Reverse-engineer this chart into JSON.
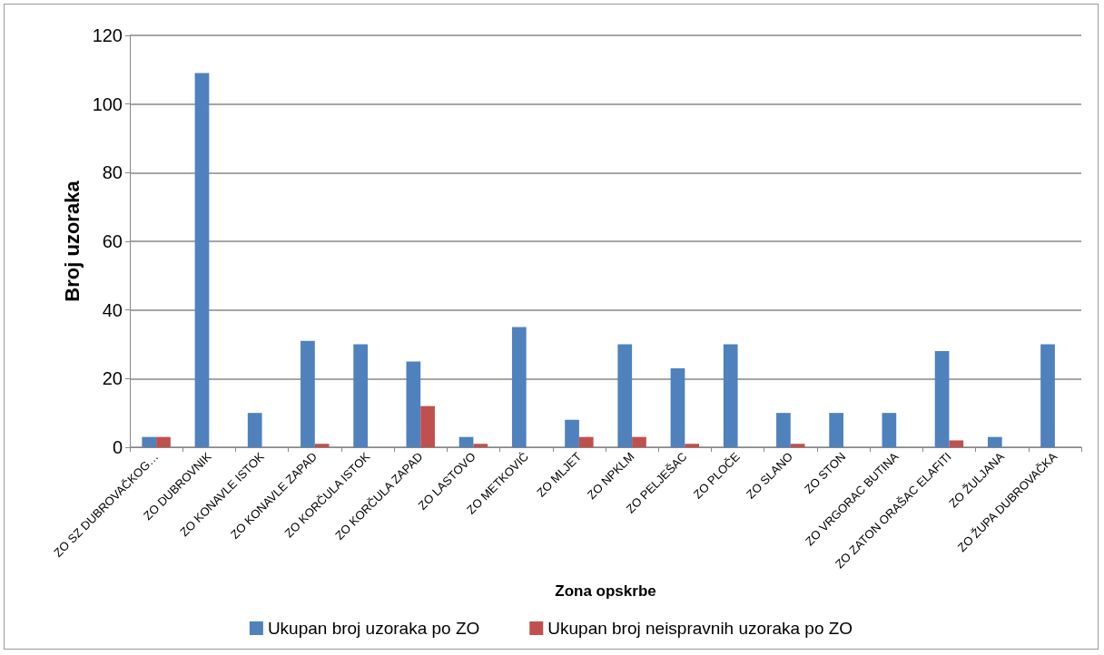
{
  "chart_data": {
    "type": "bar",
    "xlabel": "Zona opskrbe",
    "ylabel": "Broj uzoraka",
    "categories": [
      "ZO SZ DUBROVAČKOG…",
      "ZO DUBROVNIK",
      "ZO KONAVLE ISTOK",
      "ZO KONAVLE ZAPAD",
      "ZO KORČULA ISTOK",
      "ZO KORČULA ZAPAD",
      "ZO LASTOVO",
      "ZO METKOVIĆ",
      "ZO MLJET",
      "ZO NPKLM",
      "ZO PELJEŠAC",
      "ZO PLOČE",
      "ZO SLANO",
      "ZO STON",
      "ZO VRGORAC BUTINA",
      "ZO ZATON ORAŠAC ELAFITI",
      "ZO ŽULJANA",
      "ZO ŽUPA DUBROVAČKA"
    ],
    "series": [
      {
        "name": "Ukupan broj uzoraka po ZO",
        "color": "#4f81bd",
        "values": [
          3,
          109,
          10,
          31,
          30,
          25,
          3,
          35,
          8,
          30,
          23,
          30,
          10,
          10,
          10,
          28,
          3,
          30
        ]
      },
      {
        "name": "Ukupan broj neispravnih uzoraka po ZO",
        "color": "#c0504d",
        "values": [
          3,
          0,
          0,
          1,
          0,
          12,
          1,
          0,
          3,
          3,
          1,
          0,
          1,
          0,
          0,
          2,
          0,
          0
        ]
      }
    ],
    "ylim": [
      0,
      120
    ],
    "yticks": [
      0,
      20,
      40,
      60,
      80,
      100,
      120
    ],
    "grid": "y",
    "legend": "bottom"
  }
}
